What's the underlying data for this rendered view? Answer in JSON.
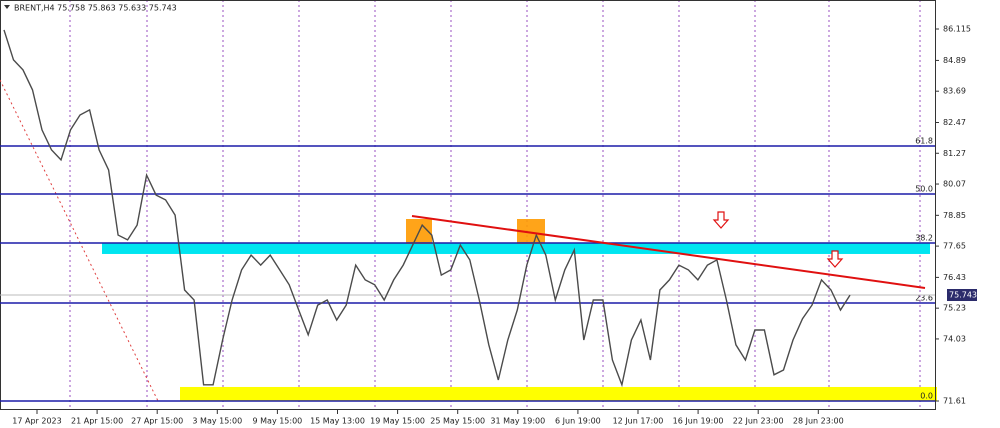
{
  "chart_data": {
    "type": "line",
    "header": "BRENT,H4  75.758 75.863 75.633 75.743",
    "ylim": [
      71.259,
      87.246
    ],
    "yticks": [
      86.115,
      84.89,
      83.69,
      82.47,
      81.27,
      80.07,
      78.85,
      77.65,
      76.43,
      75.23,
      74.03,
      71.61
    ],
    "date_labels": [
      "17 Apr 2023",
      "21 Apr 15:00",
      "27 Apr 15:00",
      "3 May 15:00",
      "9 May 15:00",
      "15 May 13:00",
      "19 May 15:00",
      "25 May 15:00",
      "31 May 19:00",
      "6 Jun 19:00",
      "12 Jun 17:00",
      "16 Jun 19:00",
      "22 Jun 23:00",
      "28 Jun 23:00"
    ],
    "series": [
      {
        "color": "#4b4b4b",
        "values": [
          86.08,
          84.91,
          84.52,
          83.74,
          82.18,
          81.4,
          81.01,
          82.18,
          82.76,
          82.96,
          81.4,
          80.62,
          78.08,
          77.89,
          78.47,
          80.42,
          79.64,
          79.45,
          78.86,
          75.94,
          75.55,
          72.24,
          72.24,
          73.99,
          75.55,
          76.72,
          77.3,
          76.91,
          77.3,
          76.72,
          76.14,
          75.16,
          74.19,
          75.35,
          75.55,
          74.77,
          75.35,
          76.91,
          76.33,
          76.14,
          75.55,
          76.33,
          76.91,
          77.69,
          78.47,
          78.08,
          76.52,
          76.72,
          77.69,
          77.11,
          75.55,
          73.8,
          72.43,
          73.99,
          75.16,
          76.91,
          78.08,
          77.3,
          75.55,
          76.72,
          77.5,
          73.99,
          75.55,
          75.55,
          73.21,
          72.24,
          73.99,
          74.77,
          73.21,
          75.94,
          76.33,
          76.91,
          76.72,
          76.33,
          76.91,
          77.11,
          75.55,
          73.8,
          73.21,
          74.38,
          74.38,
          72.63,
          72.82,
          73.99,
          74.82,
          75.35,
          76.33,
          75.94,
          75.16,
          75.74
        ]
      }
    ],
    "fib_levels": [
      {
        "label": "61.8",
        "value": 81.554
      },
      {
        "label": "50.0",
        "value": 79.682
      },
      {
        "label": "38.2",
        "value": 77.772
      },
      {
        "label": "23.6",
        "value": 75.433
      },
      {
        "label": "0.0",
        "value": 71.612
      }
    ],
    "fib_color": "#1c1ca8",
    "zones": [
      {
        "color": "#00e5f0",
        "values": [
          77.772,
          77.343
        ]
      },
      {
        "color": "#ffff00",
        "values": [
          72.157,
          71.612
        ]
      }
    ],
    "trendline": {
      "color": "#e01010",
      "values": [
        78.825,
        76.018
      ]
    },
    "current_price": {
      "value": 75.743,
      "label": "75.743"
    }
  }
}
